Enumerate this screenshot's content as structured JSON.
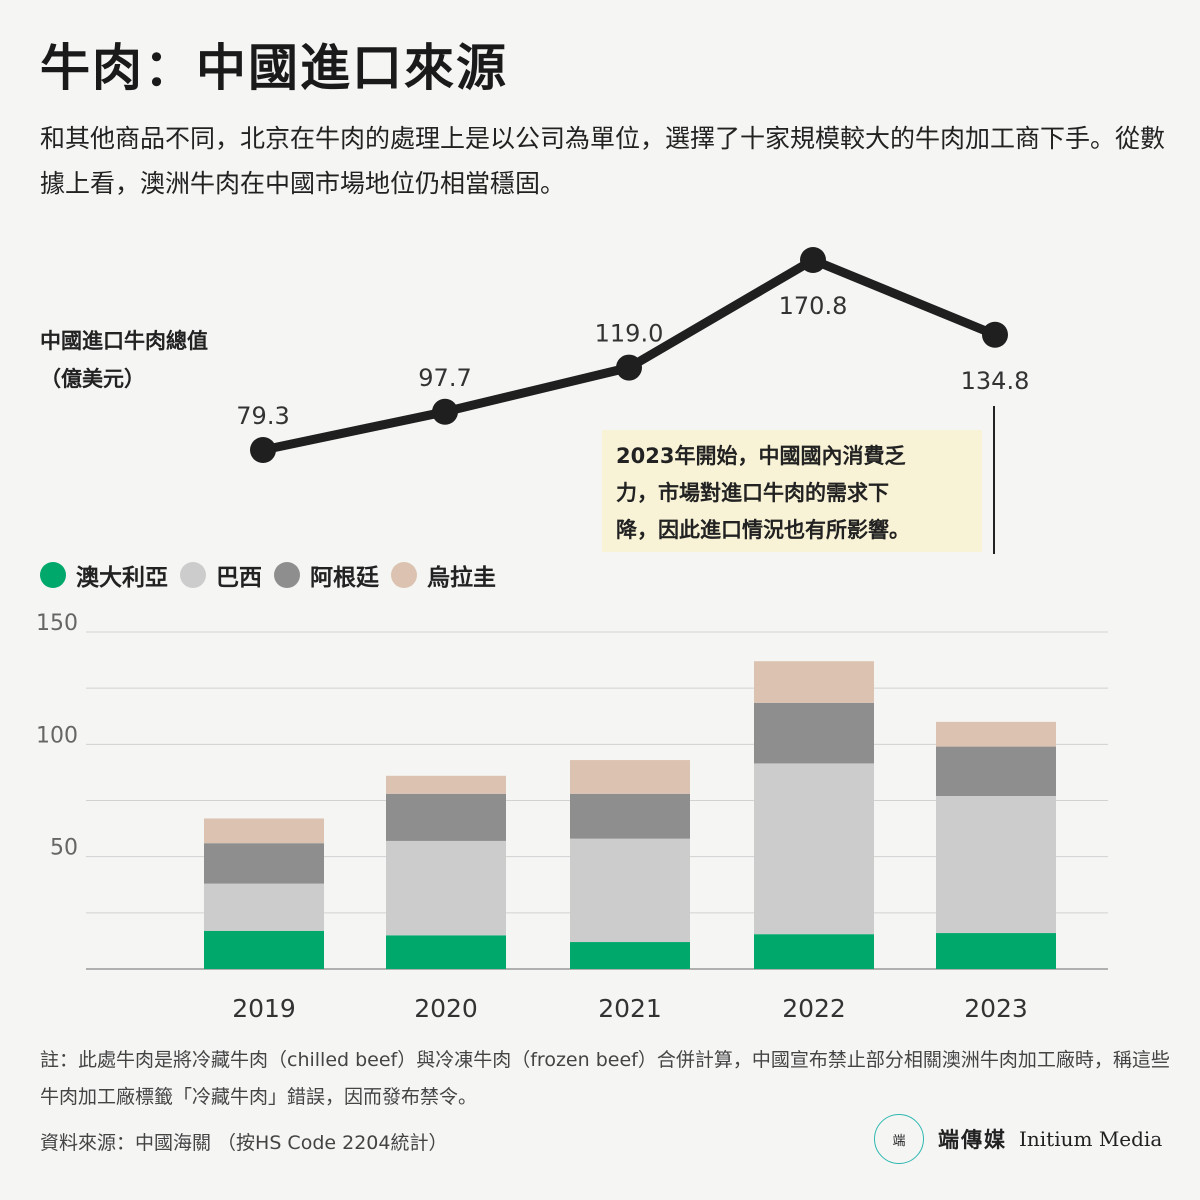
{
  "title": "牛肉：中國進口來源",
  "subtitle": "和其他商品不同，北京在牛肉的處理上是以公司為單位，選擇了十家規模較大的牛肉加工商下手。從數據上看，澳洲牛肉在中國市場地位仍相當穩固。",
  "line_label_1": "中國進口牛肉總值",
  "line_label_2": "（億美元）",
  "annotation": [
    "2023年開始，中國國內消費乏",
    "力，市場對進口牛肉的需求下",
    "降，因此進口情況也有所影響。"
  ],
  "legend": [
    {
      "name": "澳大利亞",
      "color": "#00a86b"
    },
    {
      "name": "巴西",
      "color": "#cccccc"
    },
    {
      "name": "阿根廷",
      "color": "#8e8e8e"
    },
    {
      "name": "烏拉圭",
      "color": "#dcc3b1"
    }
  ],
  "chart_data": [
    {
      "type": "line",
      "x": [
        "2019",
        "2020",
        "2021",
        "2022",
        "2023"
      ],
      "values": [
        79.3,
        97.7,
        119.0,
        170.8,
        134.8
      ],
      "value_labels": [
        "79.3",
        "97.7",
        "119.0",
        "170.8",
        "134.8"
      ]
    },
    {
      "type": "bar",
      "stacked": true,
      "categories": [
        "2019",
        "2020",
        "2021",
        "2022",
        "2023"
      ],
      "series": [
        {
          "name": "澳大利亞",
          "color": "#00a86b",
          "values": [
            17,
            15,
            12,
            15.5,
            16
          ]
        },
        {
          "name": "巴西",
          "color": "#cccccc",
          "values": [
            21,
            42,
            46,
            76,
            61
          ]
        },
        {
          "name": "阿根廷",
          "color": "#8e8e8e",
          "values": [
            18,
            21,
            20,
            27,
            22
          ]
        },
        {
          "name": "烏拉圭",
          "color": "#dcc3b1",
          "values": [
            11,
            8,
            15,
            18.5,
            11
          ]
        }
      ],
      "yticks": [
        "50",
        "100",
        "150"
      ],
      "ylim": [
        0,
        150
      ],
      "grid": true
    }
  ],
  "footnote": "註：此處牛肉是將冷藏牛肉（chilled beef）與冷凍牛肉（frozen beef）合併計算，中國宣布禁止部分相關澳洲牛肉加工廠時，稱這些牛肉加工廠標籤「冷藏牛肉」錯誤，因而發布禁令。",
  "source": "資料來源：中國海關 （按HS Code 2204統計）",
  "brand": {
    "cn": "端傳媒",
    "en": "Initium Media",
    "mark": "端"
  }
}
